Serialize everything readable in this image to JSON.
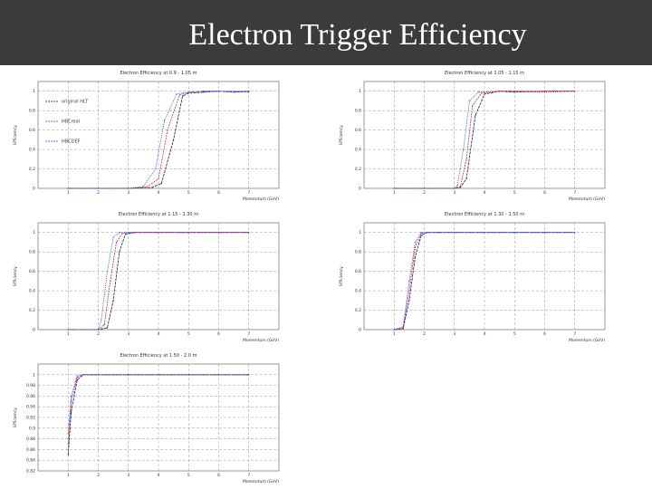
{
  "slide": {
    "title": "Electron Trigger Efficiency"
  },
  "chart_data": [
    {
      "type": "line",
      "title": "Electron Efficiency at 0.9 - 1.05 m",
      "xlabel": "Momentum (GeV)",
      "ylabel": "Efficiency",
      "xlim": [
        0,
        8
      ],
      "ylim": [
        0,
        1.1
      ],
      "xticks": [
        1,
        2,
        3,
        4,
        5,
        6,
        7
      ],
      "yticks": [
        0,
        0.2,
        0.4,
        0.6,
        0.8,
        1
      ],
      "grid": true,
      "legend": "left",
      "series": [
        {
          "name": "original HLT",
          "color": "#1a1a4a",
          "x": [
            1,
            2,
            3,
            3.8,
            4.1,
            4.5,
            4.8,
            5.0,
            5.5,
            6,
            6.5,
            7
          ],
          "y": [
            0,
            0,
            0,
            0.01,
            0.05,
            0.5,
            0.95,
            0.98,
            0.99,
            1.0,
            0.99,
            1.0
          ]
        },
        {
          "name": "HBCreal",
          "color": "#c03040",
          "x": [
            1,
            2,
            3,
            3.6,
            4.0,
            4.3,
            4.7,
            5.0,
            5.5,
            6,
            7
          ],
          "y": [
            0,
            0,
            0,
            0.01,
            0.1,
            0.6,
            0.96,
            0.99,
            1.0,
            1.0,
            0.99
          ]
        },
        {
          "name": "HBCDEF",
          "color": "#3050d0",
          "x": [
            1,
            2,
            3,
            3.5,
            3.9,
            4.2,
            4.6,
            5.0,
            5.5,
            6,
            7
          ],
          "y": [
            0,
            0,
            0,
            0.02,
            0.2,
            0.7,
            0.97,
            0.99,
            1.0,
            1.0,
            1.0
          ]
        }
      ]
    },
    {
      "type": "line",
      "title": "Electron Efficiency at 1.05 - 1.15 m",
      "xlabel": "Momentum (GeV)",
      "ylabel": "Efficiency",
      "xlim": [
        0,
        8
      ],
      "ylim": [
        0,
        1.1
      ],
      "xticks": [
        1,
        2,
        3,
        4,
        5,
        6,
        7
      ],
      "yticks": [
        0,
        0.2,
        0.4,
        0.6,
        0.8,
        1
      ],
      "grid": true,
      "series": [
        {
          "name": "",
          "color": "#1a1a4a",
          "x": [
            1,
            2,
            3,
            3.2,
            3.4,
            3.7,
            4.0,
            4.5,
            5,
            6,
            7
          ],
          "y": [
            0,
            0,
            0,
            0.01,
            0.1,
            0.75,
            0.97,
            1.0,
            0.99,
            1.0,
            1.0
          ]
        },
        {
          "name": "",
          "color": "#c03040",
          "x": [
            1,
            2,
            3,
            3.2,
            3.4,
            3.6,
            3.9,
            4.5,
            5,
            6,
            7
          ],
          "y": [
            0,
            0,
            0,
            0.02,
            0.3,
            0.85,
            0.98,
            1.0,
            1.0,
            1.0,
            1.0
          ]
        },
        {
          "name": "",
          "color": "#3050d0",
          "x": [
            1,
            2,
            3,
            3.1,
            3.3,
            3.5,
            3.8,
            4.5,
            5,
            6,
            7
          ],
          "y": [
            0,
            0,
            0,
            0.03,
            0.4,
            0.9,
            0.99,
            1.0,
            1.0,
            0.99,
            1.0
          ]
        }
      ]
    },
    {
      "type": "line",
      "title": "Electron Efficiency at 1.15 - 1.30 m",
      "xlabel": "Momentum (GeV)",
      "ylabel": "Efficiency",
      "xlim": [
        0,
        8
      ],
      "ylim": [
        0,
        1.1
      ],
      "xticks": [
        1,
        2,
        3,
        4,
        5,
        6,
        7
      ],
      "yticks": [
        0,
        0.2,
        0.4,
        0.6,
        0.8,
        1
      ],
      "grid": true,
      "series": [
        {
          "name": "",
          "color": "#1a1a4a",
          "x": [
            1,
            2,
            2.3,
            2.5,
            2.7,
            2.9,
            3.2,
            4,
            5,
            6,
            7
          ],
          "y": [
            0,
            0,
            0.02,
            0.3,
            0.8,
            0.98,
            1.0,
            1.0,
            1.0,
            1.0,
            1.0
          ]
        },
        {
          "name": "",
          "color": "#c03040",
          "x": [
            1,
            2,
            2.2,
            2.4,
            2.6,
            2.8,
            3.1,
            4,
            5,
            6,
            7
          ],
          "y": [
            0,
            0,
            0.05,
            0.5,
            0.9,
            0.99,
            1.0,
            1.0,
            1.0,
            1.0,
            1.0
          ]
        },
        {
          "name": "",
          "color": "#3050d0",
          "x": [
            1,
            2,
            2.1,
            2.3,
            2.5,
            2.7,
            3.0,
            4,
            5,
            6,
            7
          ],
          "y": [
            0,
            0,
            0.1,
            0.6,
            0.95,
            1.0,
            1.0,
            1.0,
            1.0,
            1.0,
            1.0
          ]
        }
      ]
    },
    {
      "type": "line",
      "title": "Electron Efficiency at 1.30 - 1.50 m",
      "xlabel": "Momentum (GeV)",
      "ylabel": "Efficiency",
      "xlim": [
        0,
        8
      ],
      "ylim": [
        0,
        1.1
      ],
      "xticks": [
        1,
        2,
        3,
        4,
        5,
        6,
        7
      ],
      "yticks": [
        0,
        0.2,
        0.4,
        0.6,
        0.8,
        1
      ],
      "grid": true,
      "series": [
        {
          "name": "",
          "color": "#1a1a4a",
          "x": [
            1,
            1.3,
            1.5,
            1.7,
            1.9,
            2.1,
            2.5,
            3,
            4,
            5,
            6,
            7
          ],
          "y": [
            0,
            0.01,
            0.3,
            0.75,
            0.97,
            1.0,
            1.0,
            1.0,
            1.0,
            1.0,
            1.0,
            1.0
          ]
        },
        {
          "name": "",
          "color": "#c03040",
          "x": [
            1,
            1.3,
            1.5,
            1.7,
            1.9,
            2.1,
            2.5,
            3,
            4,
            5,
            6,
            7
          ],
          "y": [
            0,
            0.02,
            0.4,
            0.85,
            0.99,
            1.0,
            1.0,
            1.0,
            1.0,
            1.0,
            1.0,
            1.0
          ]
        },
        {
          "name": "",
          "color": "#3050d0",
          "x": [
            1,
            1.3,
            1.5,
            1.7,
            1.9,
            2.1,
            2.5,
            3,
            4,
            5,
            6,
            7
          ],
          "y": [
            0,
            0.03,
            0.5,
            0.9,
            1.0,
            1.0,
            1.0,
            1.0,
            1.0,
            1.0,
            1.0,
            1.0
          ]
        }
      ]
    },
    {
      "type": "line",
      "title": "Electron Efficiency at 1.50 - 2.0 m",
      "xlabel": "Momentum (GeV)",
      "ylabel": "Efficiency",
      "xlim": [
        0,
        8
      ],
      "ylim": [
        0.82,
        1.02
      ],
      "xticks": [
        1,
        2,
        3,
        4,
        5,
        6,
        7
      ],
      "yticks": [
        0.82,
        0.84,
        0.86,
        0.88,
        0.9,
        0.92,
        0.94,
        0.96,
        0.98,
        1
      ],
      "ytick_labels": [
        "0.82",
        "0.84",
        "0.86",
        "0.88",
        "0.9",
        "0.92",
        "0.94",
        "0.96",
        "0.98",
        "1"
      ],
      "grid": true,
      "series": [
        {
          "name": "",
          "color": "#1a1a4a",
          "x": [
            1,
            1.1,
            1.3,
            1.5,
            1.8,
            2.5,
            3,
            4,
            5,
            6,
            7
          ],
          "y": [
            0.85,
            0.93,
            0.99,
            1.0,
            1.0,
            1.0,
            1.0,
            1.0,
            1.0,
            1.0,
            1.0
          ]
        },
        {
          "name": "",
          "color": "#c03040",
          "x": [
            1,
            1.1,
            1.3,
            1.5,
            1.8,
            2.5,
            3,
            4,
            5,
            6,
            7
          ],
          "y": [
            0.87,
            0.95,
            0.995,
            1.0,
            1.0,
            1.0,
            1.0,
            1.0,
            1.0,
            1.0,
            1.0
          ]
        },
        {
          "name": "",
          "color": "#3050d0",
          "x": [
            1,
            1.1,
            1.3,
            1.5,
            1.8,
            2.5,
            3,
            4,
            5,
            6,
            7
          ],
          "y": [
            0.89,
            0.96,
            0.998,
            1.0,
            1.0,
            1.0,
            1.0,
            1.0,
            1.0,
            1.0,
            1.0
          ]
        }
      ]
    }
  ]
}
